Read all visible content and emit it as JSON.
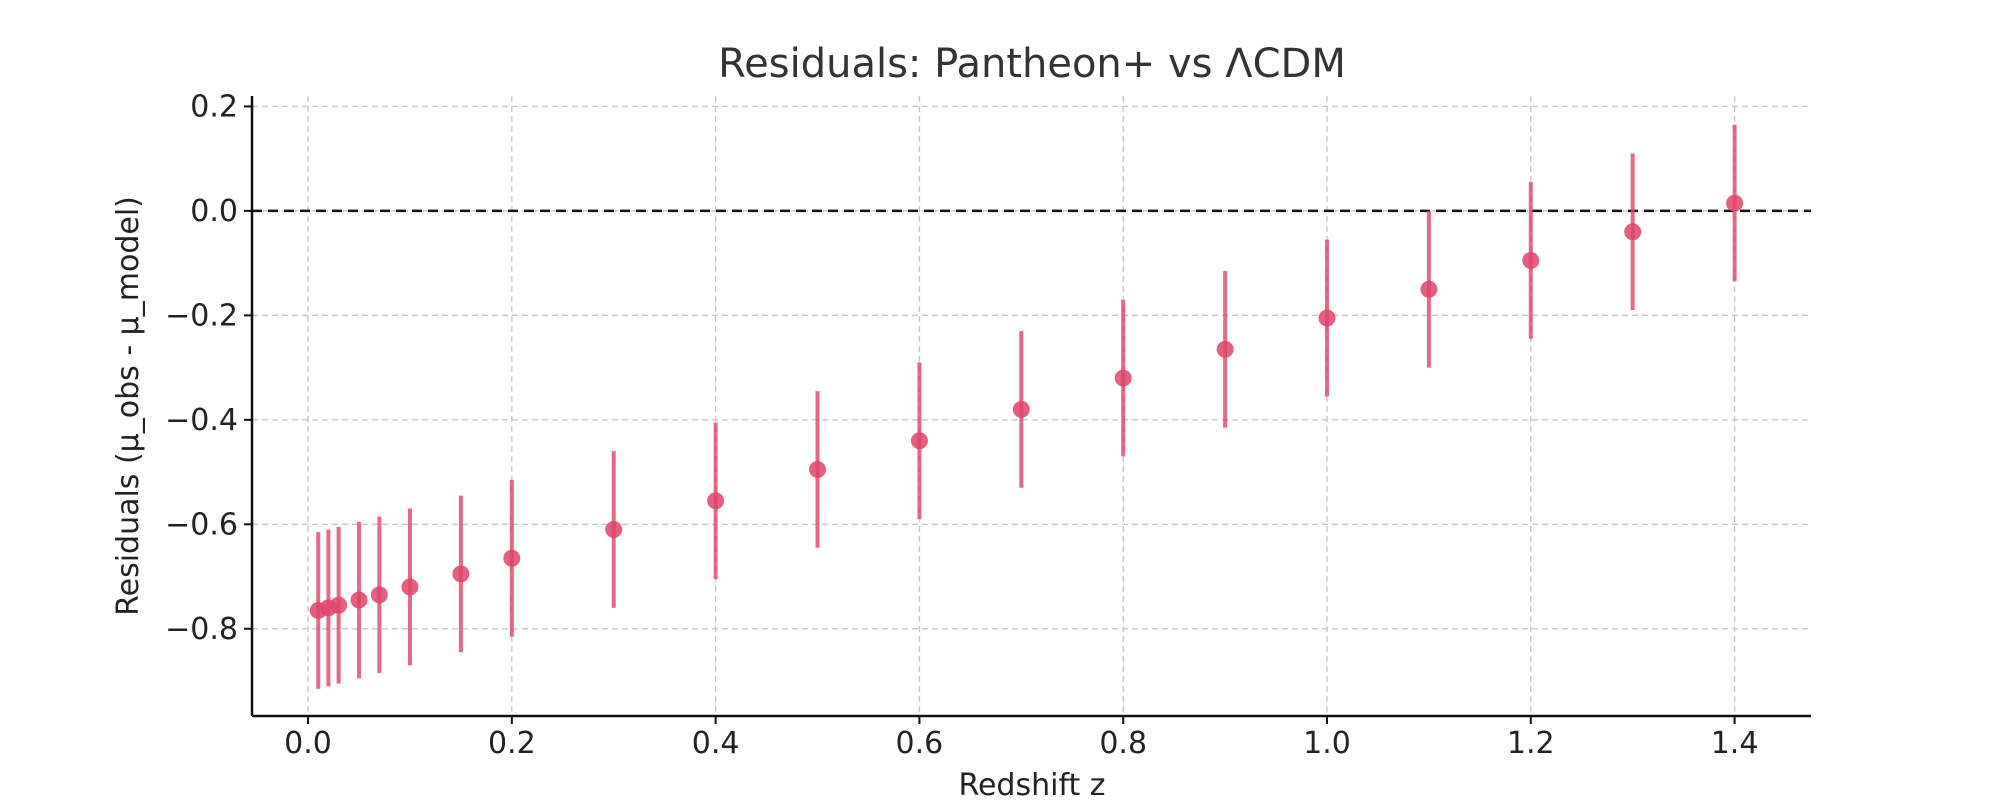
{
  "chart_data": {
    "type": "scatter",
    "title": "Residuals: Pantheon+ vs ΛCDM",
    "xlabel": "Redshift z",
    "ylabel": "Residuals (μ_obs - μ_model)",
    "xlim": [
      -0.055,
      1.475
    ],
    "ylim": [
      -0.967,
      0.22
    ],
    "x_ticks": [
      "0.0",
      "0.2",
      "0.4",
      "0.6",
      "0.8",
      "1.0",
      "1.2",
      "1.4"
    ],
    "y_ticks": [
      "0.2",
      "0.0",
      "−0.2",
      "−0.4",
      "−0.6",
      "−0.8"
    ],
    "grid": true,
    "legend": "none",
    "reference_line": {
      "y": 0.0,
      "style": "dashed",
      "color": "#111111"
    },
    "marker_color": "#e0446a",
    "series": [
      {
        "x": [
          0.01,
          0.02,
          0.03,
          0.05,
          0.07,
          0.1,
          0.15,
          0.2,
          0.3,
          0.4,
          0.5,
          0.6,
          0.7,
          0.8,
          0.9,
          1.0,
          1.1,
          1.2,
          1.3,
          1.4
        ],
        "values": [
          -0.765,
          -0.76,
          -0.755,
          -0.745,
          -0.735,
          -0.72,
          -0.695,
          -0.665,
          -0.61,
          -0.555,
          -0.495,
          -0.44,
          -0.38,
          -0.32,
          -0.265,
          -0.205,
          -0.15,
          -0.095,
          -0.04,
          0.015
        ],
        "errors": [
          0.15,
          0.15,
          0.15,
          0.15,
          0.15,
          0.15,
          0.15,
          0.15,
          0.15,
          0.15,
          0.15,
          0.15,
          0.15,
          0.15,
          0.15,
          0.15,
          0.15,
          0.15,
          0.15,
          0.15
        ]
      }
    ]
  }
}
